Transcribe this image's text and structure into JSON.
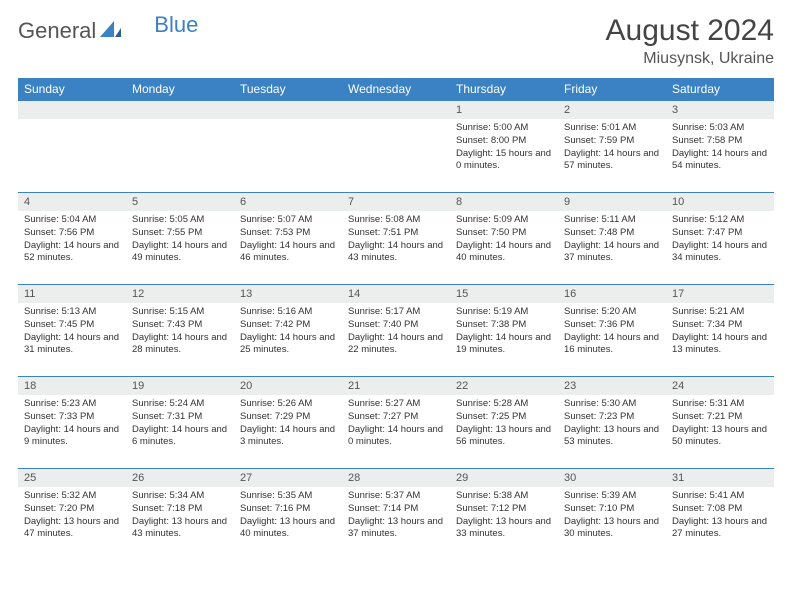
{
  "brand": {
    "name1": "General",
    "name2": "Blue"
  },
  "title": "August 2024",
  "location": "Miusynsk, Ukraine",
  "colors": {
    "header_bg": "#3b82c4",
    "header_text": "#ffffff",
    "daynum_bg": "#eceded",
    "border": "#3b82c4",
    "body_text": "#333333",
    "title_text": "#444444"
  },
  "weekdays": [
    "Sunday",
    "Monday",
    "Tuesday",
    "Wednesday",
    "Thursday",
    "Friday",
    "Saturday"
  ],
  "weeks": [
    [
      null,
      null,
      null,
      null,
      {
        "n": "1",
        "sr": "Sunrise: 5:00 AM",
        "ss": "Sunset: 8:00 PM",
        "dl": "Daylight: 15 hours and 0 minutes."
      },
      {
        "n": "2",
        "sr": "Sunrise: 5:01 AM",
        "ss": "Sunset: 7:59 PM",
        "dl": "Daylight: 14 hours and 57 minutes."
      },
      {
        "n": "3",
        "sr": "Sunrise: 5:03 AM",
        "ss": "Sunset: 7:58 PM",
        "dl": "Daylight: 14 hours and 54 minutes."
      }
    ],
    [
      {
        "n": "4",
        "sr": "Sunrise: 5:04 AM",
        "ss": "Sunset: 7:56 PM",
        "dl": "Daylight: 14 hours and 52 minutes."
      },
      {
        "n": "5",
        "sr": "Sunrise: 5:05 AM",
        "ss": "Sunset: 7:55 PM",
        "dl": "Daylight: 14 hours and 49 minutes."
      },
      {
        "n": "6",
        "sr": "Sunrise: 5:07 AM",
        "ss": "Sunset: 7:53 PM",
        "dl": "Daylight: 14 hours and 46 minutes."
      },
      {
        "n": "7",
        "sr": "Sunrise: 5:08 AM",
        "ss": "Sunset: 7:51 PM",
        "dl": "Daylight: 14 hours and 43 minutes."
      },
      {
        "n": "8",
        "sr": "Sunrise: 5:09 AM",
        "ss": "Sunset: 7:50 PM",
        "dl": "Daylight: 14 hours and 40 minutes."
      },
      {
        "n": "9",
        "sr": "Sunrise: 5:11 AM",
        "ss": "Sunset: 7:48 PM",
        "dl": "Daylight: 14 hours and 37 minutes."
      },
      {
        "n": "10",
        "sr": "Sunrise: 5:12 AM",
        "ss": "Sunset: 7:47 PM",
        "dl": "Daylight: 14 hours and 34 minutes."
      }
    ],
    [
      {
        "n": "11",
        "sr": "Sunrise: 5:13 AM",
        "ss": "Sunset: 7:45 PM",
        "dl": "Daylight: 14 hours and 31 minutes."
      },
      {
        "n": "12",
        "sr": "Sunrise: 5:15 AM",
        "ss": "Sunset: 7:43 PM",
        "dl": "Daylight: 14 hours and 28 minutes."
      },
      {
        "n": "13",
        "sr": "Sunrise: 5:16 AM",
        "ss": "Sunset: 7:42 PM",
        "dl": "Daylight: 14 hours and 25 minutes."
      },
      {
        "n": "14",
        "sr": "Sunrise: 5:17 AM",
        "ss": "Sunset: 7:40 PM",
        "dl": "Daylight: 14 hours and 22 minutes."
      },
      {
        "n": "15",
        "sr": "Sunrise: 5:19 AM",
        "ss": "Sunset: 7:38 PM",
        "dl": "Daylight: 14 hours and 19 minutes."
      },
      {
        "n": "16",
        "sr": "Sunrise: 5:20 AM",
        "ss": "Sunset: 7:36 PM",
        "dl": "Daylight: 14 hours and 16 minutes."
      },
      {
        "n": "17",
        "sr": "Sunrise: 5:21 AM",
        "ss": "Sunset: 7:34 PM",
        "dl": "Daylight: 14 hours and 13 minutes."
      }
    ],
    [
      {
        "n": "18",
        "sr": "Sunrise: 5:23 AM",
        "ss": "Sunset: 7:33 PM",
        "dl": "Daylight: 14 hours and 9 minutes."
      },
      {
        "n": "19",
        "sr": "Sunrise: 5:24 AM",
        "ss": "Sunset: 7:31 PM",
        "dl": "Daylight: 14 hours and 6 minutes."
      },
      {
        "n": "20",
        "sr": "Sunrise: 5:26 AM",
        "ss": "Sunset: 7:29 PM",
        "dl": "Daylight: 14 hours and 3 minutes."
      },
      {
        "n": "21",
        "sr": "Sunrise: 5:27 AM",
        "ss": "Sunset: 7:27 PM",
        "dl": "Daylight: 14 hours and 0 minutes."
      },
      {
        "n": "22",
        "sr": "Sunrise: 5:28 AM",
        "ss": "Sunset: 7:25 PM",
        "dl": "Daylight: 13 hours and 56 minutes."
      },
      {
        "n": "23",
        "sr": "Sunrise: 5:30 AM",
        "ss": "Sunset: 7:23 PM",
        "dl": "Daylight: 13 hours and 53 minutes."
      },
      {
        "n": "24",
        "sr": "Sunrise: 5:31 AM",
        "ss": "Sunset: 7:21 PM",
        "dl": "Daylight: 13 hours and 50 minutes."
      }
    ],
    [
      {
        "n": "25",
        "sr": "Sunrise: 5:32 AM",
        "ss": "Sunset: 7:20 PM",
        "dl": "Daylight: 13 hours and 47 minutes."
      },
      {
        "n": "26",
        "sr": "Sunrise: 5:34 AM",
        "ss": "Sunset: 7:18 PM",
        "dl": "Daylight: 13 hours and 43 minutes."
      },
      {
        "n": "27",
        "sr": "Sunrise: 5:35 AM",
        "ss": "Sunset: 7:16 PM",
        "dl": "Daylight: 13 hours and 40 minutes."
      },
      {
        "n": "28",
        "sr": "Sunrise: 5:37 AM",
        "ss": "Sunset: 7:14 PM",
        "dl": "Daylight: 13 hours and 37 minutes."
      },
      {
        "n": "29",
        "sr": "Sunrise: 5:38 AM",
        "ss": "Sunset: 7:12 PM",
        "dl": "Daylight: 13 hours and 33 minutes."
      },
      {
        "n": "30",
        "sr": "Sunrise: 5:39 AM",
        "ss": "Sunset: 7:10 PM",
        "dl": "Daylight: 13 hours and 30 minutes."
      },
      {
        "n": "31",
        "sr": "Sunrise: 5:41 AM",
        "ss": "Sunset: 7:08 PM",
        "dl": "Daylight: 13 hours and 27 minutes."
      }
    ]
  ]
}
